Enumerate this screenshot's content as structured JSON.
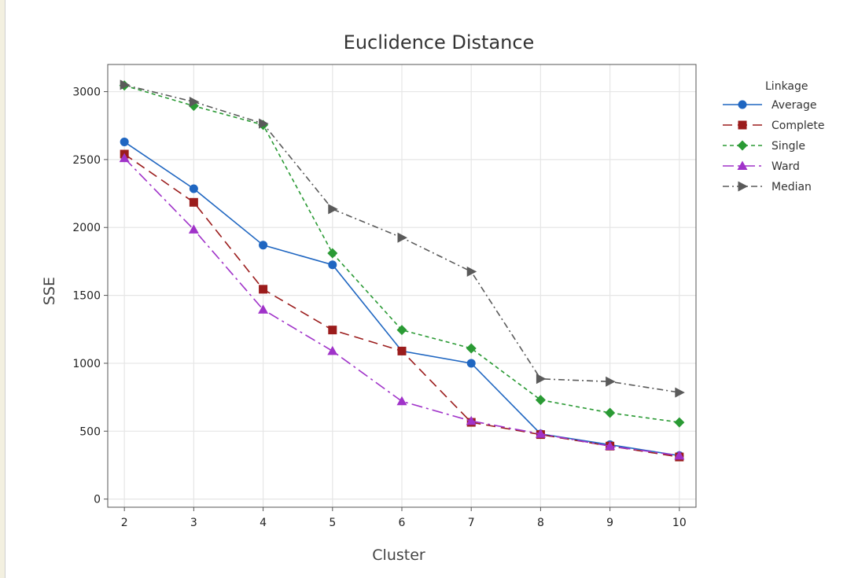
{
  "chart_data": {
    "type": "line",
    "title": "Euclidence Distance",
    "xlabel": "Cluster",
    "ylabel": "SSE",
    "x": [
      2,
      3,
      4,
      5,
      6,
      7,
      8,
      9,
      10
    ],
    "ylim": [
      -60,
      3200
    ],
    "yticks": [
      0,
      500,
      1000,
      1500,
      2000,
      2500,
      3000
    ],
    "grid": true,
    "legend_title": "Linkage",
    "legend_position": "right",
    "series": [
      {
        "name": "Average",
        "color": "#1f66c1",
        "marker": "circle",
        "dash": "solid",
        "values": [
          2630,
          2285,
          1870,
          1725,
          1090,
          1000,
          480,
          400,
          320
        ]
      },
      {
        "name": "Complete",
        "color": "#9b1c1c",
        "marker": "square",
        "dash": "dashed",
        "values": [
          2540,
          2185,
          1545,
          1245,
          1090,
          565,
          475,
          390,
          310
        ]
      },
      {
        "name": "Single",
        "color": "#2a9a34",
        "marker": "diamond",
        "dash": "dotted",
        "values": [
          3045,
          2895,
          2755,
          1810,
          1245,
          1110,
          730,
          635,
          565
        ]
      },
      {
        "name": "Ward",
        "color": "#a033c9",
        "marker": "triangle",
        "dash": "dashdot",
        "values": [
          2510,
          1985,
          1395,
          1090,
          720,
          575,
          480,
          390,
          320
        ]
      },
      {
        "name": "Median",
        "color": "#5a5a5a",
        "marker": "arrow",
        "dash": "dashdot2",
        "values": [
          3050,
          2925,
          2765,
          2135,
          1925,
          1675,
          885,
          865,
          785
        ]
      }
    ]
  }
}
